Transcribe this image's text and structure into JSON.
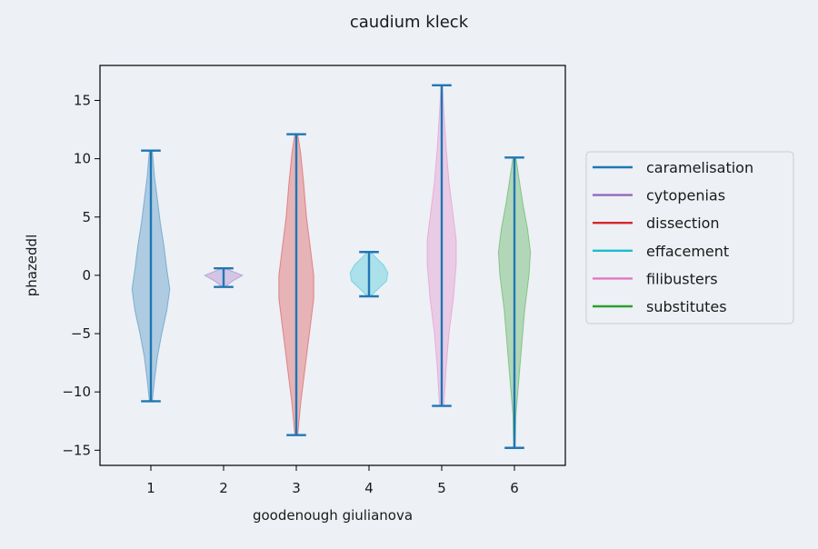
{
  "chart_data": {
    "type": "violin",
    "title": "caudium kleck",
    "xlabel": "goodenough giulianova",
    "ylabel": "phazeddl",
    "ylim": [
      -16.3,
      18.0
    ],
    "xlim": [
      0.3,
      6.7
    ],
    "yticks": [
      -15,
      -10,
      -5,
      0,
      5,
      10,
      15
    ],
    "categories": [
      "1",
      "2",
      "3",
      "4",
      "5",
      "6"
    ],
    "legend_position": "right",
    "grid": false,
    "whisker_color": "#1f77b4",
    "series": [
      {
        "name": "caramelisation",
        "x": 1,
        "color": "#1f77b4",
        "min": -10.8,
        "max": 10.7,
        "profile": [
          [
            -10.8,
            0.02
          ],
          [
            -9,
            0.05
          ],
          [
            -7,
            0.09
          ],
          [
            -5,
            0.15
          ],
          [
            -3,
            0.22
          ],
          [
            -1.2,
            0.26
          ],
          [
            0.5,
            0.22
          ],
          [
            2.5,
            0.18
          ],
          [
            4.5,
            0.13
          ],
          [
            6.5,
            0.09
          ],
          [
            8.5,
            0.05
          ],
          [
            10.7,
            0.02
          ]
        ]
      },
      {
        "name": "cytopenias",
        "x": 2,
        "color": "#9467bd",
        "min": -1.0,
        "max": 0.6,
        "profile": [
          [
            -1.0,
            0.02
          ],
          [
            -0.5,
            0.12
          ],
          [
            0,
            0.26
          ],
          [
            0.3,
            0.14
          ],
          [
            0.6,
            0.02
          ]
        ]
      },
      {
        "name": "dissection",
        "x": 3,
        "color": "#d62728",
        "min": -13.7,
        "max": 12.1,
        "profile": [
          [
            -13.7,
            0.02
          ],
          [
            -11,
            0.06
          ],
          [
            -8,
            0.12
          ],
          [
            -5,
            0.18
          ],
          [
            -2,
            0.24
          ],
          [
            0,
            0.24
          ],
          [
            2,
            0.2
          ],
          [
            5,
            0.14
          ],
          [
            8,
            0.1
          ],
          [
            10.5,
            0.06
          ],
          [
            12.1,
            0.02
          ]
        ]
      },
      {
        "name": "effacement",
        "x": 4,
        "color": "#17becf",
        "min": -1.8,
        "max": 2.0,
        "profile": [
          [
            -1.8,
            0.02
          ],
          [
            -1.2,
            0.12
          ],
          [
            -0.5,
            0.24
          ],
          [
            0.2,
            0.26
          ],
          [
            0.9,
            0.2
          ],
          [
            1.5,
            0.1
          ],
          [
            2.0,
            0.02
          ]
        ]
      },
      {
        "name": "filibusters",
        "x": 5,
        "color": "#e377c2",
        "min": -11.2,
        "max": 16.3,
        "profile": [
          [
            -11.2,
            0.03
          ],
          [
            -8,
            0.06
          ],
          [
            -5,
            0.1
          ],
          [
            -2,
            0.16
          ],
          [
            1,
            0.2
          ],
          [
            3,
            0.2
          ],
          [
            5,
            0.16
          ],
          [
            8,
            0.1
          ],
          [
            11,
            0.06
          ],
          [
            14,
            0.03
          ],
          [
            16.3,
            0.01
          ]
        ]
      },
      {
        "name": "substitutes",
        "x": 6,
        "color": "#2ca02c",
        "min": -14.8,
        "max": 10.1,
        "profile": [
          [
            -14.8,
            0.01
          ],
          [
            -12,
            0.02
          ],
          [
            -9,
            0.06
          ],
          [
            -6,
            0.1
          ],
          [
            -3,
            0.14
          ],
          [
            0,
            0.2
          ],
          [
            2,
            0.22
          ],
          [
            4,
            0.18
          ],
          [
            6,
            0.12
          ],
          [
            8,
            0.07
          ],
          [
            10.1,
            0.02
          ]
        ]
      }
    ]
  }
}
